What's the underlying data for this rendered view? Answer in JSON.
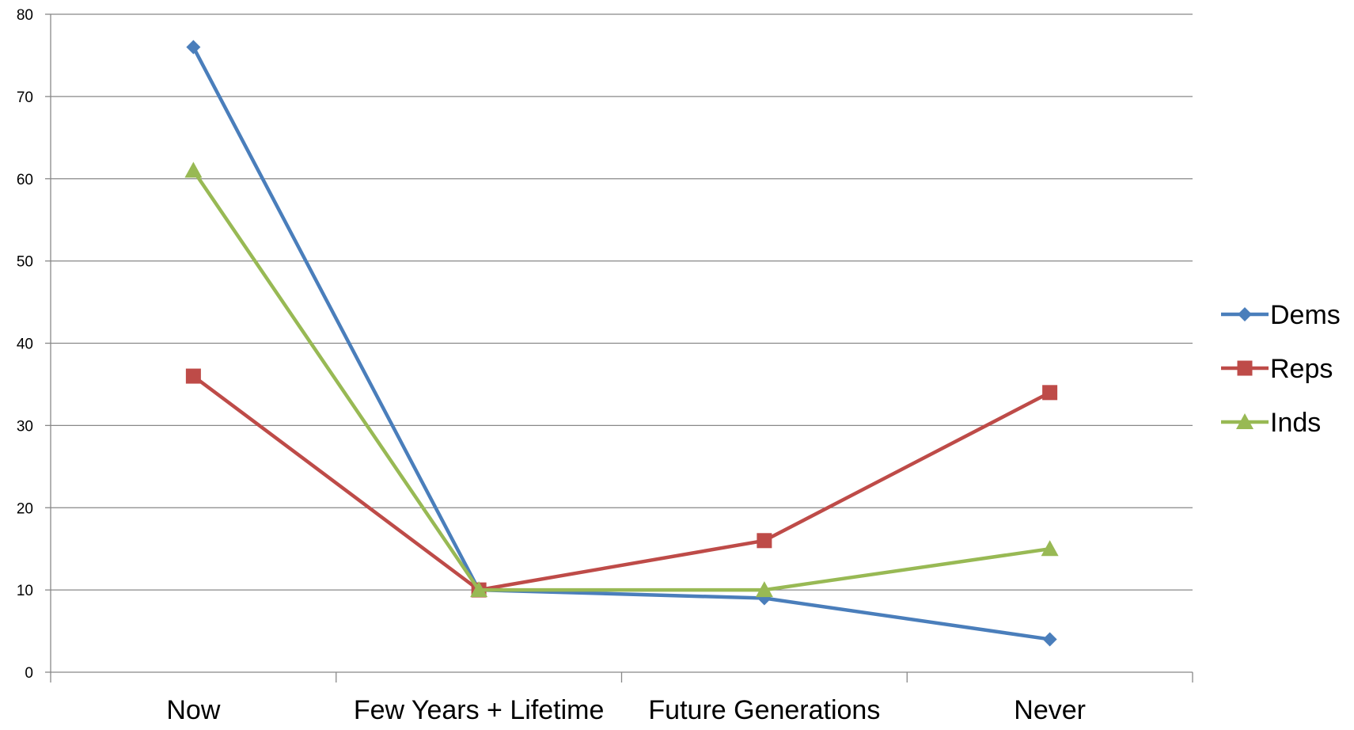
{
  "chart_data": {
    "type": "line",
    "categories": [
      "Now",
      "Few Years + Lifetime",
      "Future Generations",
      "Never"
    ],
    "series": [
      {
        "name": "Dems",
        "values": [
          76,
          10,
          9,
          4
        ],
        "color": "#4A7EBB",
        "marker": "diamond"
      },
      {
        "name": "Reps",
        "values": [
          36,
          10,
          16,
          34
        ],
        "color": "#BE4B48",
        "marker": "square"
      },
      {
        "name": "Inds",
        "values": [
          61,
          10,
          10,
          15
        ],
        "color": "#98B954",
        "marker": "triangle"
      }
    ],
    "ylim": [
      0,
      80
    ],
    "yticks": [
      "0",
      "10",
      "20",
      "30",
      "40",
      "50",
      "60",
      "70",
      "80"
    ],
    "grid": true,
    "legend": "right"
  }
}
